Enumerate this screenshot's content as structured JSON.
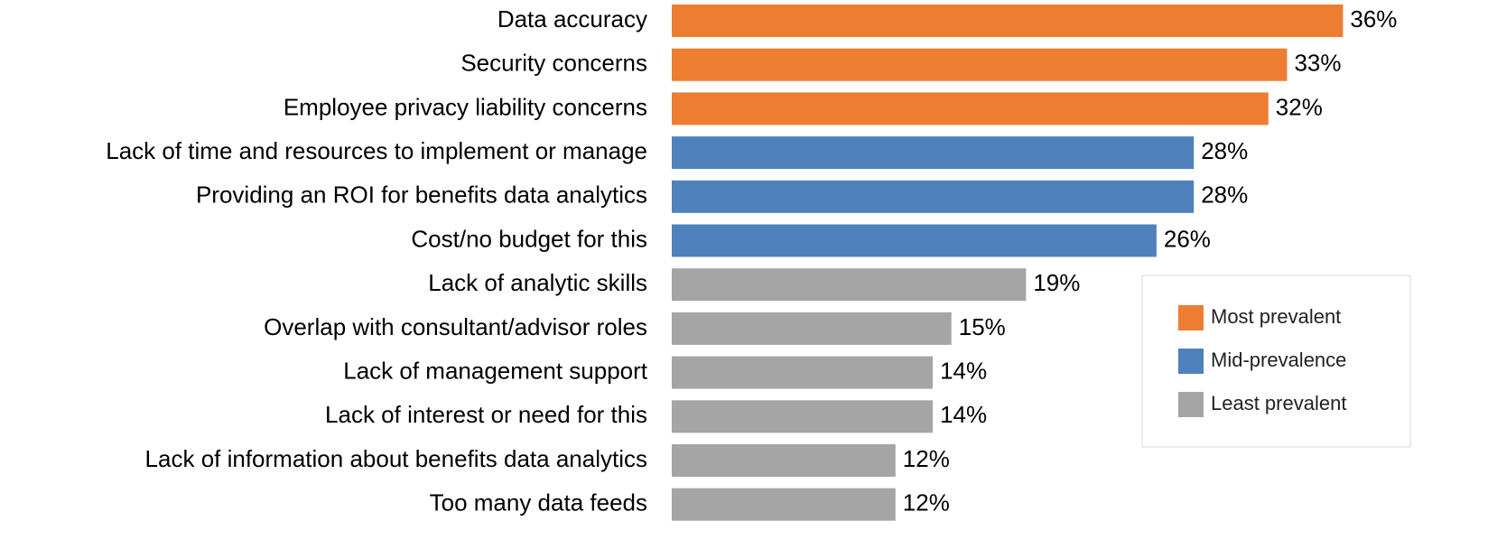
{
  "chart_data": {
    "type": "bar",
    "orientation": "horizontal",
    "categories": [
      "Data accuracy",
      "Security concerns",
      "Employee privacy liability concerns",
      "Lack of time and resources to implement or manage",
      "Providing an ROI for benefits data analytics",
      "Cost/no budget for this",
      "Lack of analytic skills",
      "Overlap with consultant/advisor roles",
      "Lack of management support",
      "Lack of interest or need for this",
      "Lack of information about benefits data analytics",
      "Too many data feeds"
    ],
    "series": [
      {
        "name": "Most prevalent",
        "color": "#ED7D31",
        "values": [
          36,
          33,
          32,
          null,
          null,
          null,
          null,
          null,
          null,
          null,
          null,
          null
        ],
        "value_labels": [
          "36%",
          "33%",
          "32%",
          null,
          null,
          null,
          null,
          null,
          null,
          null,
          null,
          null
        ]
      },
      {
        "name": "Mid-prevalence",
        "color": "#4F81BD",
        "values": [
          null,
          null,
          null,
          28,
          28,
          26,
          null,
          null,
          null,
          null,
          null,
          null
        ],
        "value_labels": [
          null,
          null,
          null,
          "28%",
          "28%",
          "26%",
          null,
          null,
          null,
          null,
          null,
          null
        ]
      },
      {
        "name": "Least prevalent",
        "color": "#A5A5A5",
        "values": [
          null,
          null,
          null,
          null,
          null,
          null,
          19,
          15,
          14,
          14,
          12,
          12
        ],
        "value_labels": [
          null,
          null,
          null,
          null,
          null,
          null,
          "19%",
          "15%",
          "14%",
          "14%",
          "12%",
          "12%"
        ]
      }
    ],
    "legend": "right"
  }
}
